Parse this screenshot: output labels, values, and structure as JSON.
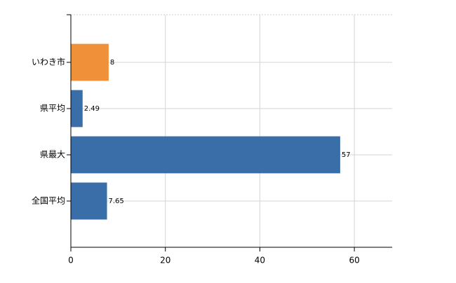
{
  "chart_data": {
    "type": "bar",
    "orientation": "horizontal",
    "categories": [
      "いわき市",
      "県平均",
      "県最大",
      "全国平均"
    ],
    "values": [
      8,
      2.49,
      57,
      7.65
    ],
    "colors": [
      "#f0913a",
      "#3a6ea8",
      "#3a6ea8",
      "#3a6ea8"
    ],
    "xlim": [
      0,
      68
    ],
    "xticks": [
      0,
      20,
      40,
      60
    ],
    "grid": true
  }
}
